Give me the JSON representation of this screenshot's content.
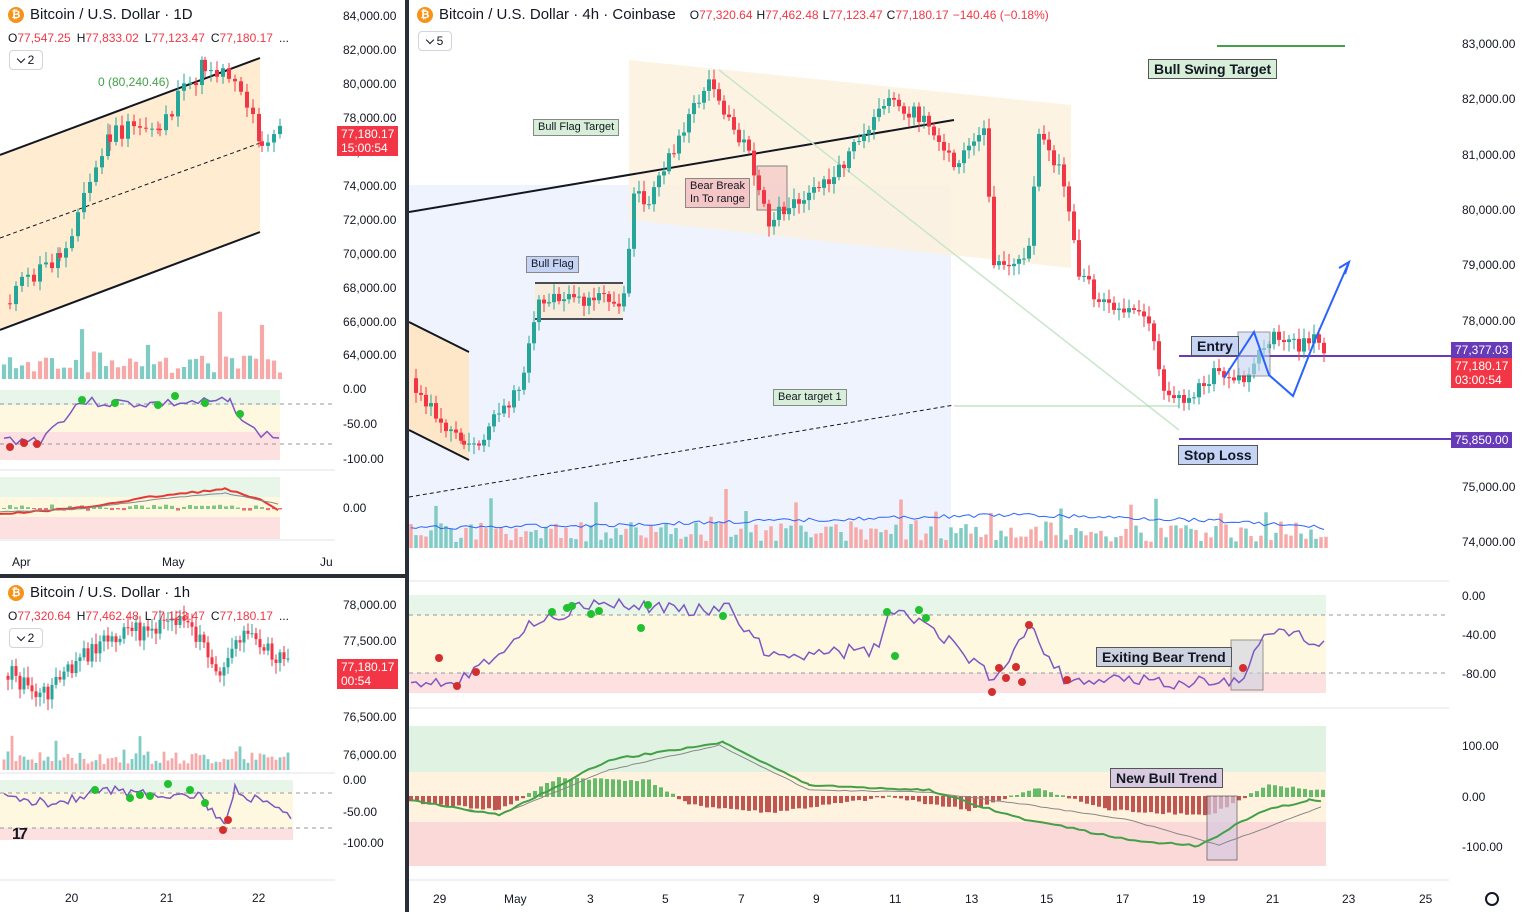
{
  "colors": {
    "up": "#26a69a",
    "down": "#f23645",
    "price_tag": "#f23645",
    "level_tag": "#673ab7",
    "rsi_line": "#7e57c2",
    "accent_blue": "#2962ff",
    "bitcoin": "#f7931a"
  },
  "icons": {
    "symbol": "bitcoin-icon",
    "settings": "gear-icon",
    "logo": "tradingview-logo-icon"
  },
  "panes": {
    "daily": {
      "title": "Bitcoin / U.S. Dollar · 1D",
      "ohlc": {
        "o": "77,547.25",
        "h": "77,833.02",
        "l": "77,123.47",
        "c": "77,180.17"
      },
      "more": "...",
      "indicators_count": "2",
      "price_axis": [
        "84,000.00",
        "82,000.00",
        "80,000.00",
        "78,000.00",
        "76,000.00",
        "74,000.00",
        "72,000.00",
        "70,000.00",
        "68,000.00",
        "66,000.00",
        "64,000.00"
      ],
      "price_tag": "77,180.17",
      "countdown": "15:00:54",
      "level_label": "0 (80,240.46)",
      "rsi_axis": [
        "0.00",
        "-50.00",
        "-100.00"
      ],
      "macd_axis": [
        "0.00"
      ],
      "time_axis": [
        "Apr",
        "May",
        "Ju"
      ]
    },
    "hourly": {
      "title": "Bitcoin / U.S. Dollar · 1h",
      "ohlc": {
        "o": "77,320.64",
        "h": "77,462.48",
        "l": "77,123.47",
        "c": "77,180.17"
      },
      "more": "...",
      "indicators_count": "2",
      "price_axis": [
        "78,000.00",
        "77,500.00",
        "76,500.00",
        "76,000.00"
      ],
      "price_tag": "77,180.17",
      "countdown": "00:54",
      "rsi_axis": [
        "0.00",
        "-50.00",
        "-100.00"
      ],
      "time_axis": [
        "20",
        "21",
        "22"
      ],
      "logo_text": "17"
    },
    "four_hour": {
      "title": "Bitcoin / U.S. Dollar · 4h · Coinbase",
      "ohlc": {
        "o": "77,320.64",
        "h": "77,462.48",
        "l": "77,123.47",
        "c": "77,180.17",
        "change": "−140.46 (−0.18%)"
      },
      "indicators_count": "5",
      "price_axis": [
        "83,000.00",
        "82,000.00",
        "81,000.00",
        "80,000.00",
        "79,000.00",
        "78,000.00",
        "75,000.00",
        "74,000.00"
      ],
      "level_entry_tag": "77,377.03",
      "price_tag": "77,180.17",
      "countdown": "03:00:54",
      "stop_tag": "75,850.00",
      "rsi_axis": [
        "0.00",
        "-40.00",
        "-80.00"
      ],
      "macd_axis": [
        "100.00",
        "0.00",
        "-100.00"
      ],
      "time_axis": [
        "29",
        "May",
        "3",
        "5",
        "7",
        "9",
        "11",
        "13",
        "15",
        "17",
        "19",
        "21",
        "23",
        "25"
      ],
      "annotations": {
        "bull_swing_target": "Bull Swing Target",
        "bull_flag_target": "Bull Flag Target",
        "bear_break": "Bear Break\nIn To range",
        "bull_flag": "Bull Flag",
        "bear_target_1": "Bear target 1",
        "entry": "Entry",
        "stop_loss": "Stop Loss",
        "exiting_bear_trend": "Exiting Bear Trend",
        "new_bull_trend": "New Bull Trend"
      }
    }
  }
}
